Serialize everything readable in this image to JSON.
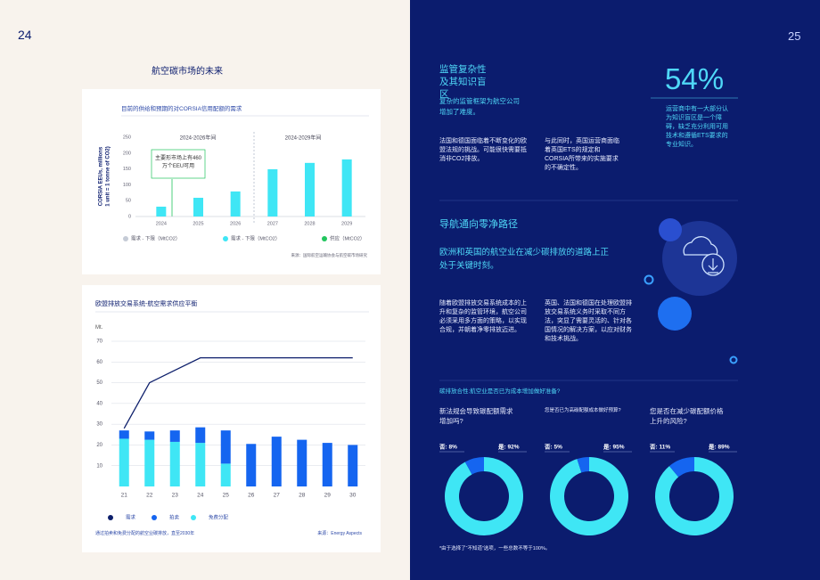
{
  "left_page": {
    "page_number": "24",
    "title": "航空碳市场的未来",
    "chart1": {
      "type": "bar",
      "title": "目前的供给和预期的对CORSIA信用配额的需求",
      "y_label": [
        "CORSIA EEUs, millions",
        "1 unit = 1 tonne of CO2)"
      ],
      "period_labels": [
        "2024-2026年间",
        "2024-2029年间"
      ],
      "annotation": "主要形市场上有460万个EEU可用",
      "categories": [
        "2024",
        "2025",
        "2026",
        "2027",
        "2028",
        "2029"
      ],
      "values": [
        31,
        59,
        79,
        149,
        169,
        180
      ],
      "color": "#3fe6f5",
      "ylim": [
        0,
        250
      ],
      "yticks": [
        0,
        50,
        100,
        150,
        200,
        250
      ],
      "legend": [
        {
          "name": "需求 - 下限（MtCO2）",
          "color": "#c5cbd6"
        },
        {
          "name": "需求 - 下限（MtCO2）",
          "color": "#3fe6f5"
        },
        {
          "name": "供应（MtCO2）",
          "color": "#22c55e"
        }
      ],
      "source": "来源：国际航空运输协会与航空碳市场研究"
    },
    "chart2": {
      "type": "stacked-bar-line",
      "title": "欧盟排放交易系统-航空需求供应平衡",
      "unit": "Mt.",
      "categories": [
        "21",
        "22",
        "23",
        "24",
        "25",
        "26",
        "27",
        "28",
        "29",
        "30"
      ],
      "series": [
        {
          "name": "需求",
          "color": "#0d1f6b",
          "type": "line",
          "values": [
            28,
            50,
            56,
            62,
            62,
            62,
            62,
            62,
            62,
            62
          ]
        },
        {
          "name": "拍卖",
          "color": "#1565f0",
          "type": "bar",
          "values": [
            4,
            4,
            5.5,
            7.5,
            16,
            20.5,
            24,
            22.5,
            21,
            20
          ]
        },
        {
          "name": "免费分配",
          "color": "#3fe6f5",
          "type": "bar",
          "values": [
            23,
            22.5,
            21.5,
            21,
            11,
            null,
            null,
            null,
            null,
            null
          ]
        }
      ],
      "ylim": [
        0,
        70
      ],
      "yticks": [
        10,
        20,
        30,
        40,
        50,
        60,
        70
      ],
      "grid": true,
      "footer": "通过拍卖和免费分配的航空业碳排放，直至2030年",
      "source": "来源：Energy Aspects"
    }
  },
  "right_page": {
    "page_number": "25",
    "section1": {
      "title": "监管复杂性及其知识盲区",
      "subtitle": "复杂的监管框架为航空公司增加了难度。",
      "paragraphs": [
        "法国和德国面临着不断变化的欧盟法规的挑战。可能很快需要抵消非CO2排放。",
        "与此同时，英国运营商面临着英国ETS的规定和CORSIA所带来的实施要求的不确定性。"
      ],
      "stat": "54%",
      "stat_text": "运营商中有一大部分认为知识盲区是一个障碍，缺乏充分利用可用技术和遵循ETS要求的专业知识。"
    },
    "section2": {
      "title": "导航通向零净路径",
      "subtitle": "欧洲和英国的航空业在减少碳排放的道路上正处于关键时刻。",
      "paragraphs": [
        "随着欧盟排放交易系统成本的上升和复杂的监管环境，航空公司必须采用多方面的策略，以实现合规，并朝着净零排放迈进。",
        "英国、法国和德国在处理欧盟排放交易系统义务时采取不同方法，突显了需要灵活的、针对各国情况的解决方案，以应对财务和技术挑战。"
      ]
    },
    "survey": {
      "heading": "碳排放合性:航空业是否已为成本增加做好准备?",
      "items": [
        {
          "question": "新法规会导致碳配额需求增加吗?",
          "values": [
            8,
            92
          ],
          "value_labels": [
            "否: 8%",
            "是: 92%"
          ]
        },
        {
          "question": "您是否已为高碳配额成本做好预算?",
          "values": [
            5,
            95
          ],
          "value_labels": [
            "否: 5%",
            "是: 95%"
          ]
        },
        {
          "question": "您是否在减少碳配额价格上升的风险?",
          "values": [
            11,
            89
          ],
          "value_labels": [
            "否: 11%",
            "是: 89%"
          ]
        }
      ],
      "colors": [
        "#1565f0",
        "#3fe6f5"
      ],
      "footnote": "*由于选择了“不知道”选项，一些总数不等于100%。"
    }
  }
}
